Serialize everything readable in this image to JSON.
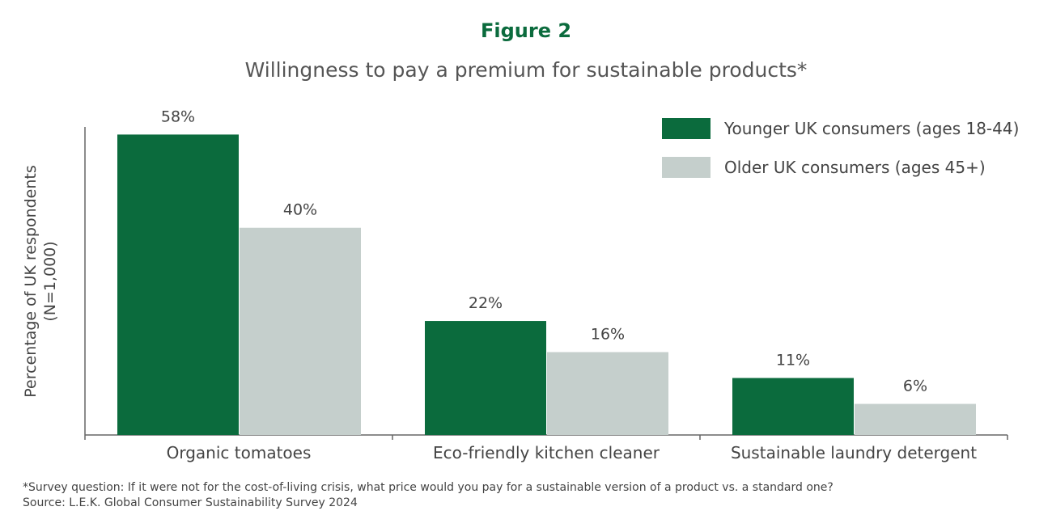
{
  "figure_label": "Figure 2",
  "chart_data": {
    "type": "bar",
    "title": "Willingness to pay a premium for sustainable products*",
    "ylabel": [
      "Percentage of UK respondents",
      "(N=1,000)"
    ],
    "xlabel": "",
    "categories": [
      "Organic tomatoes",
      "Eco-friendly kitchen cleaner",
      "Sustainable laundry detergent"
    ],
    "series": [
      {
        "name": "Younger UK consumers (ages 18-44)",
        "values": [
          58,
          22,
          11
        ],
        "labels": [
          "58%",
          "22%",
          "11%"
        ],
        "color": "#0b6b3d"
      },
      {
        "name": "Older UK consumers (ages 45+)",
        "values": [
          40,
          16,
          6
        ],
        "labels": [
          "40%",
          "16%",
          "6%"
        ],
        "color": "#c5cfcc"
      }
    ],
    "ylim": [
      0,
      59
    ],
    "grid": false,
    "legend": "top-right"
  },
  "notes": {
    "footnote": "*Survey question: If it were not for the cost-of-living crisis, what price would you pay for a sustainable version of a product vs. a standard one?",
    "source": "Source: L.E.K. Global Consumer Sustainability Survey 2024"
  }
}
